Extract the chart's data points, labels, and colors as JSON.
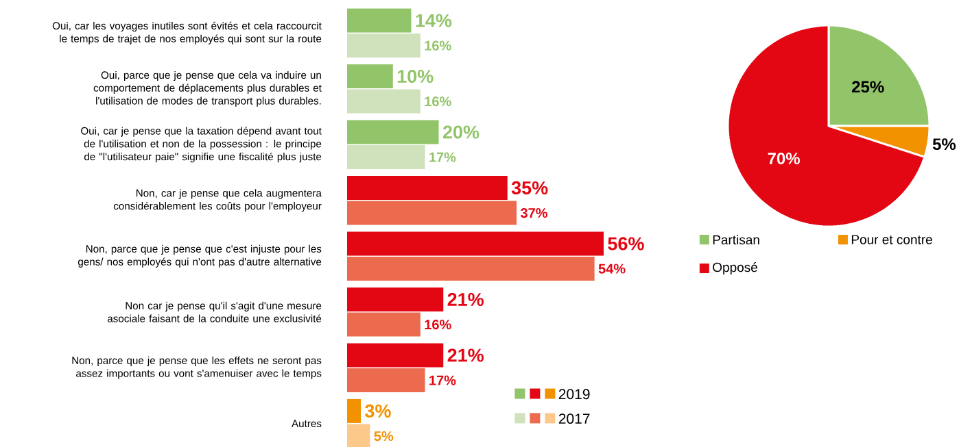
{
  "chart_data": [
    {
      "type": "bar",
      "orientation": "horizontal",
      "categories": [
        "Oui, car les voyages inutiles sont évités et cela raccourcit le temps de trajet de nos employés qui sont sur la route",
        "Oui, parce que je pense que cela va induire un comportement de déplacements plus durables et l'utilisation de modes de transport plus durables.",
        "Oui, car je pense que la taxation dépend avant tout de l'utilisation et non de la possession : le principe de \"l'utilisateur paie\" signifie une fiscalité plus juste",
        "Non, car je pense que cela augmentera considérablement les coûts pour l'employeur",
        "Non, parce que je pense que c'est injuste pour les gens/ nos employés qui n'ont pas d'autre alternative",
        "Non car je pense qu'il s'agit d'une mesure asociale faisant de la conduite une exclusivité",
        "Non, parce que je pense que les effets ne seront pas assez importants ou vont s'amenuiser avec le temps",
        "Autres"
      ],
      "series": [
        {
          "name": "2019",
          "colors": [
            "#92c46a",
            "#92c46a",
            "#92c46a",
            "#e30613",
            "#e30613",
            "#e30613",
            "#e30613",
            "#f39200"
          ],
          "values": [
            14,
            10,
            20,
            35,
            56,
            21,
            21,
            3
          ],
          "value_labels": [
            "14%",
            "10%",
            "20%",
            "35%",
            "56%",
            "21%",
            "21%",
            "3%"
          ]
        },
        {
          "name": "2017",
          "colors": [
            "#cfe2bb",
            "#cfe2bb",
            "#cfe2bb",
            "#ec6b4f",
            "#ec6b4f",
            "#ec6b4f",
            "#ec6b4f",
            "#fcc98b"
          ],
          "values": [
            16,
            16,
            17,
            37,
            54,
            16,
            17,
            5
          ],
          "value_labels": [
            "16%",
            "16%",
            "17%",
            "37%",
            "54%",
            "16%",
            "17%",
            "5%"
          ]
        }
      ],
      "legend": "bottom right"
    },
    {
      "type": "pie",
      "categories": [
        "Partisan",
        "Pour et contre",
        "Opposé"
      ],
      "values": [
        25,
        5,
        70
      ],
      "value_labels": [
        "25%",
        "5%",
        "70%"
      ],
      "colors": [
        "#92c46a",
        "#f39200",
        "#e30613"
      ],
      "legend": "bottom"
    }
  ]
}
